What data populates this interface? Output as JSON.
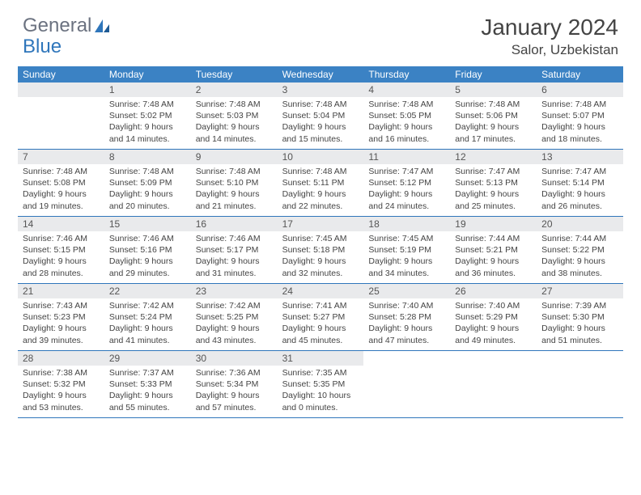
{
  "brand": {
    "part1": "General",
    "part2": "Blue"
  },
  "title": "January 2024",
  "location": "Salor, Uzbekistan",
  "colors": {
    "header_bg": "#3b82c4",
    "daynum_bg": "#e9eaec",
    "week_border": "#2f76bb",
    "brand_gray": "#6b7280",
    "brand_blue": "#2f76bb"
  },
  "day_names": [
    "Sunday",
    "Monday",
    "Tuesday",
    "Wednesday",
    "Thursday",
    "Friday",
    "Saturday"
  ],
  "weeks": [
    [
      {
        "n": "",
        "sr": "",
        "ss": "",
        "dl": ""
      },
      {
        "n": "1",
        "sr": "Sunrise: 7:48 AM",
        "ss": "Sunset: 5:02 PM",
        "dl": "Daylight: 9 hours and 14 minutes."
      },
      {
        "n": "2",
        "sr": "Sunrise: 7:48 AM",
        "ss": "Sunset: 5:03 PM",
        "dl": "Daylight: 9 hours and 14 minutes."
      },
      {
        "n": "3",
        "sr": "Sunrise: 7:48 AM",
        "ss": "Sunset: 5:04 PM",
        "dl": "Daylight: 9 hours and 15 minutes."
      },
      {
        "n": "4",
        "sr": "Sunrise: 7:48 AM",
        "ss": "Sunset: 5:05 PM",
        "dl": "Daylight: 9 hours and 16 minutes."
      },
      {
        "n": "5",
        "sr": "Sunrise: 7:48 AM",
        "ss": "Sunset: 5:06 PM",
        "dl": "Daylight: 9 hours and 17 minutes."
      },
      {
        "n": "6",
        "sr": "Sunrise: 7:48 AM",
        "ss": "Sunset: 5:07 PM",
        "dl": "Daylight: 9 hours and 18 minutes."
      }
    ],
    [
      {
        "n": "7",
        "sr": "Sunrise: 7:48 AM",
        "ss": "Sunset: 5:08 PM",
        "dl": "Daylight: 9 hours and 19 minutes."
      },
      {
        "n": "8",
        "sr": "Sunrise: 7:48 AM",
        "ss": "Sunset: 5:09 PM",
        "dl": "Daylight: 9 hours and 20 minutes."
      },
      {
        "n": "9",
        "sr": "Sunrise: 7:48 AM",
        "ss": "Sunset: 5:10 PM",
        "dl": "Daylight: 9 hours and 21 minutes."
      },
      {
        "n": "10",
        "sr": "Sunrise: 7:48 AM",
        "ss": "Sunset: 5:11 PM",
        "dl": "Daylight: 9 hours and 22 minutes."
      },
      {
        "n": "11",
        "sr": "Sunrise: 7:47 AM",
        "ss": "Sunset: 5:12 PM",
        "dl": "Daylight: 9 hours and 24 minutes."
      },
      {
        "n": "12",
        "sr": "Sunrise: 7:47 AM",
        "ss": "Sunset: 5:13 PM",
        "dl": "Daylight: 9 hours and 25 minutes."
      },
      {
        "n": "13",
        "sr": "Sunrise: 7:47 AM",
        "ss": "Sunset: 5:14 PM",
        "dl": "Daylight: 9 hours and 26 minutes."
      }
    ],
    [
      {
        "n": "14",
        "sr": "Sunrise: 7:46 AM",
        "ss": "Sunset: 5:15 PM",
        "dl": "Daylight: 9 hours and 28 minutes."
      },
      {
        "n": "15",
        "sr": "Sunrise: 7:46 AM",
        "ss": "Sunset: 5:16 PM",
        "dl": "Daylight: 9 hours and 29 minutes."
      },
      {
        "n": "16",
        "sr": "Sunrise: 7:46 AM",
        "ss": "Sunset: 5:17 PM",
        "dl": "Daylight: 9 hours and 31 minutes."
      },
      {
        "n": "17",
        "sr": "Sunrise: 7:45 AM",
        "ss": "Sunset: 5:18 PM",
        "dl": "Daylight: 9 hours and 32 minutes."
      },
      {
        "n": "18",
        "sr": "Sunrise: 7:45 AM",
        "ss": "Sunset: 5:19 PM",
        "dl": "Daylight: 9 hours and 34 minutes."
      },
      {
        "n": "19",
        "sr": "Sunrise: 7:44 AM",
        "ss": "Sunset: 5:21 PM",
        "dl": "Daylight: 9 hours and 36 minutes."
      },
      {
        "n": "20",
        "sr": "Sunrise: 7:44 AM",
        "ss": "Sunset: 5:22 PM",
        "dl": "Daylight: 9 hours and 38 minutes."
      }
    ],
    [
      {
        "n": "21",
        "sr": "Sunrise: 7:43 AM",
        "ss": "Sunset: 5:23 PM",
        "dl": "Daylight: 9 hours and 39 minutes."
      },
      {
        "n": "22",
        "sr": "Sunrise: 7:42 AM",
        "ss": "Sunset: 5:24 PM",
        "dl": "Daylight: 9 hours and 41 minutes."
      },
      {
        "n": "23",
        "sr": "Sunrise: 7:42 AM",
        "ss": "Sunset: 5:25 PM",
        "dl": "Daylight: 9 hours and 43 minutes."
      },
      {
        "n": "24",
        "sr": "Sunrise: 7:41 AM",
        "ss": "Sunset: 5:27 PM",
        "dl": "Daylight: 9 hours and 45 minutes."
      },
      {
        "n": "25",
        "sr": "Sunrise: 7:40 AM",
        "ss": "Sunset: 5:28 PM",
        "dl": "Daylight: 9 hours and 47 minutes."
      },
      {
        "n": "26",
        "sr": "Sunrise: 7:40 AM",
        "ss": "Sunset: 5:29 PM",
        "dl": "Daylight: 9 hours and 49 minutes."
      },
      {
        "n": "27",
        "sr": "Sunrise: 7:39 AM",
        "ss": "Sunset: 5:30 PM",
        "dl": "Daylight: 9 hours and 51 minutes."
      }
    ],
    [
      {
        "n": "28",
        "sr": "Sunrise: 7:38 AM",
        "ss": "Sunset: 5:32 PM",
        "dl": "Daylight: 9 hours and 53 minutes."
      },
      {
        "n": "29",
        "sr": "Sunrise: 7:37 AM",
        "ss": "Sunset: 5:33 PM",
        "dl": "Daylight: 9 hours and 55 minutes."
      },
      {
        "n": "30",
        "sr": "Sunrise: 7:36 AM",
        "ss": "Sunset: 5:34 PM",
        "dl": "Daylight: 9 hours and 57 minutes."
      },
      {
        "n": "31",
        "sr": "Sunrise: 7:35 AM",
        "ss": "Sunset: 5:35 PM",
        "dl": "Daylight: 10 hours and 0 minutes."
      },
      {
        "n": "",
        "sr": "",
        "ss": "",
        "dl": ""
      },
      {
        "n": "",
        "sr": "",
        "ss": "",
        "dl": ""
      },
      {
        "n": "",
        "sr": "",
        "ss": "",
        "dl": ""
      }
    ]
  ]
}
